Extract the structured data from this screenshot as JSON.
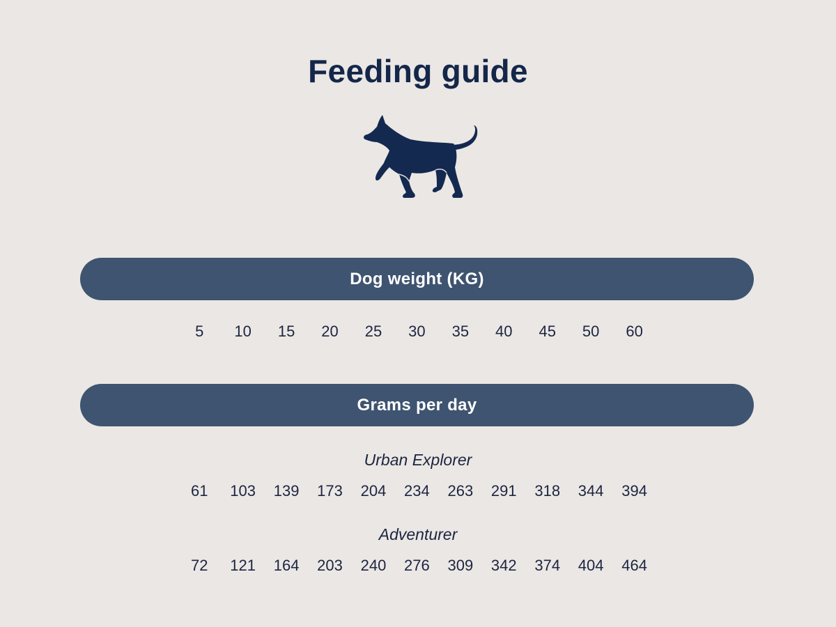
{
  "title": "Feeding guide",
  "icon": "dog-icon",
  "colors": {
    "background": "#ebe7e4",
    "accent": "#3e5470",
    "text": "#14274a"
  },
  "weight_header": "Dog weight (KG)",
  "weights": [
    "5",
    "10",
    "15",
    "20",
    "25",
    "30",
    "35",
    "40",
    "45",
    "50",
    "60"
  ],
  "grams_header": "Grams per day",
  "products": [
    {
      "name": "Urban Explorer",
      "values": [
        "61",
        "103",
        "139",
        "173",
        "204",
        "234",
        "263",
        "291",
        "318",
        "344",
        "394"
      ]
    },
    {
      "name": "Adventurer",
      "values": [
        "72",
        "121",
        "164",
        "203",
        "240",
        "276",
        "309",
        "342",
        "374",
        "404",
        "464"
      ]
    }
  ]
}
